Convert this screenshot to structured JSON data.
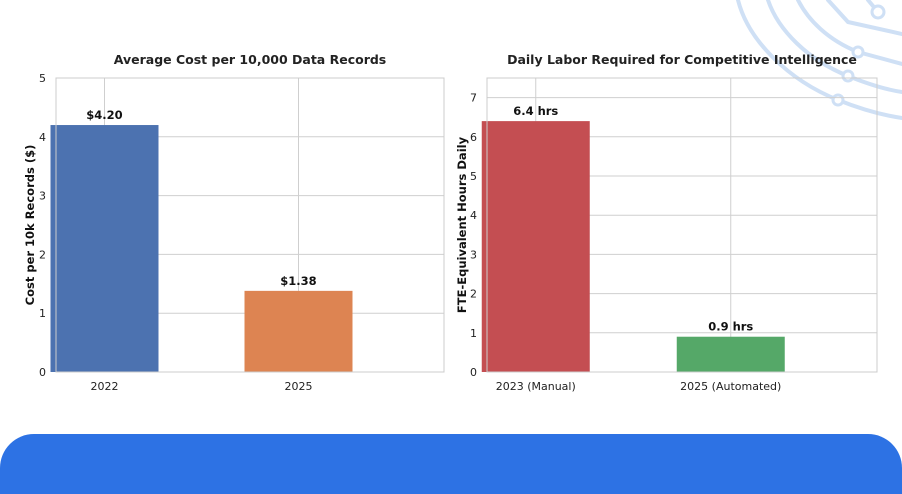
{
  "accent_colors": {
    "footer": "#2d72e4",
    "decoration": "#cfe0f5"
  },
  "chart_data": [
    {
      "type": "bar",
      "title": "Average Cost per 10,000 Data Records",
      "xlabel": "",
      "ylabel": "Cost per 10k Records ($)",
      "categories": [
        "2022",
        "2025"
      ],
      "values": [
        4.2,
        1.38
      ],
      "data_labels": [
        "$4.20",
        "$1.38"
      ],
      "colors": [
        "#4c72b0",
        "#dd8452"
      ],
      "ylim": [
        0,
        5
      ],
      "yticks": [
        0,
        1,
        2,
        3,
        4,
        5
      ],
      "grid": true
    },
    {
      "type": "bar",
      "title": "Daily Labor Required for Competitive Intelligence",
      "xlabel": "",
      "ylabel": "FTE-Equivalent Hours Daily",
      "categories": [
        "2023 (Manual)",
        "2025 (Automated)"
      ],
      "values": [
        6.4,
        0.9
      ],
      "data_labels": [
        "6.4 hrs",
        "0.9 hrs"
      ],
      "colors": [
        "#c44e52",
        "#55a868"
      ],
      "ylim": [
        0,
        7.5
      ],
      "yticks": [
        0,
        1,
        2,
        3,
        4,
        5,
        6,
        7
      ],
      "grid": true
    }
  ]
}
